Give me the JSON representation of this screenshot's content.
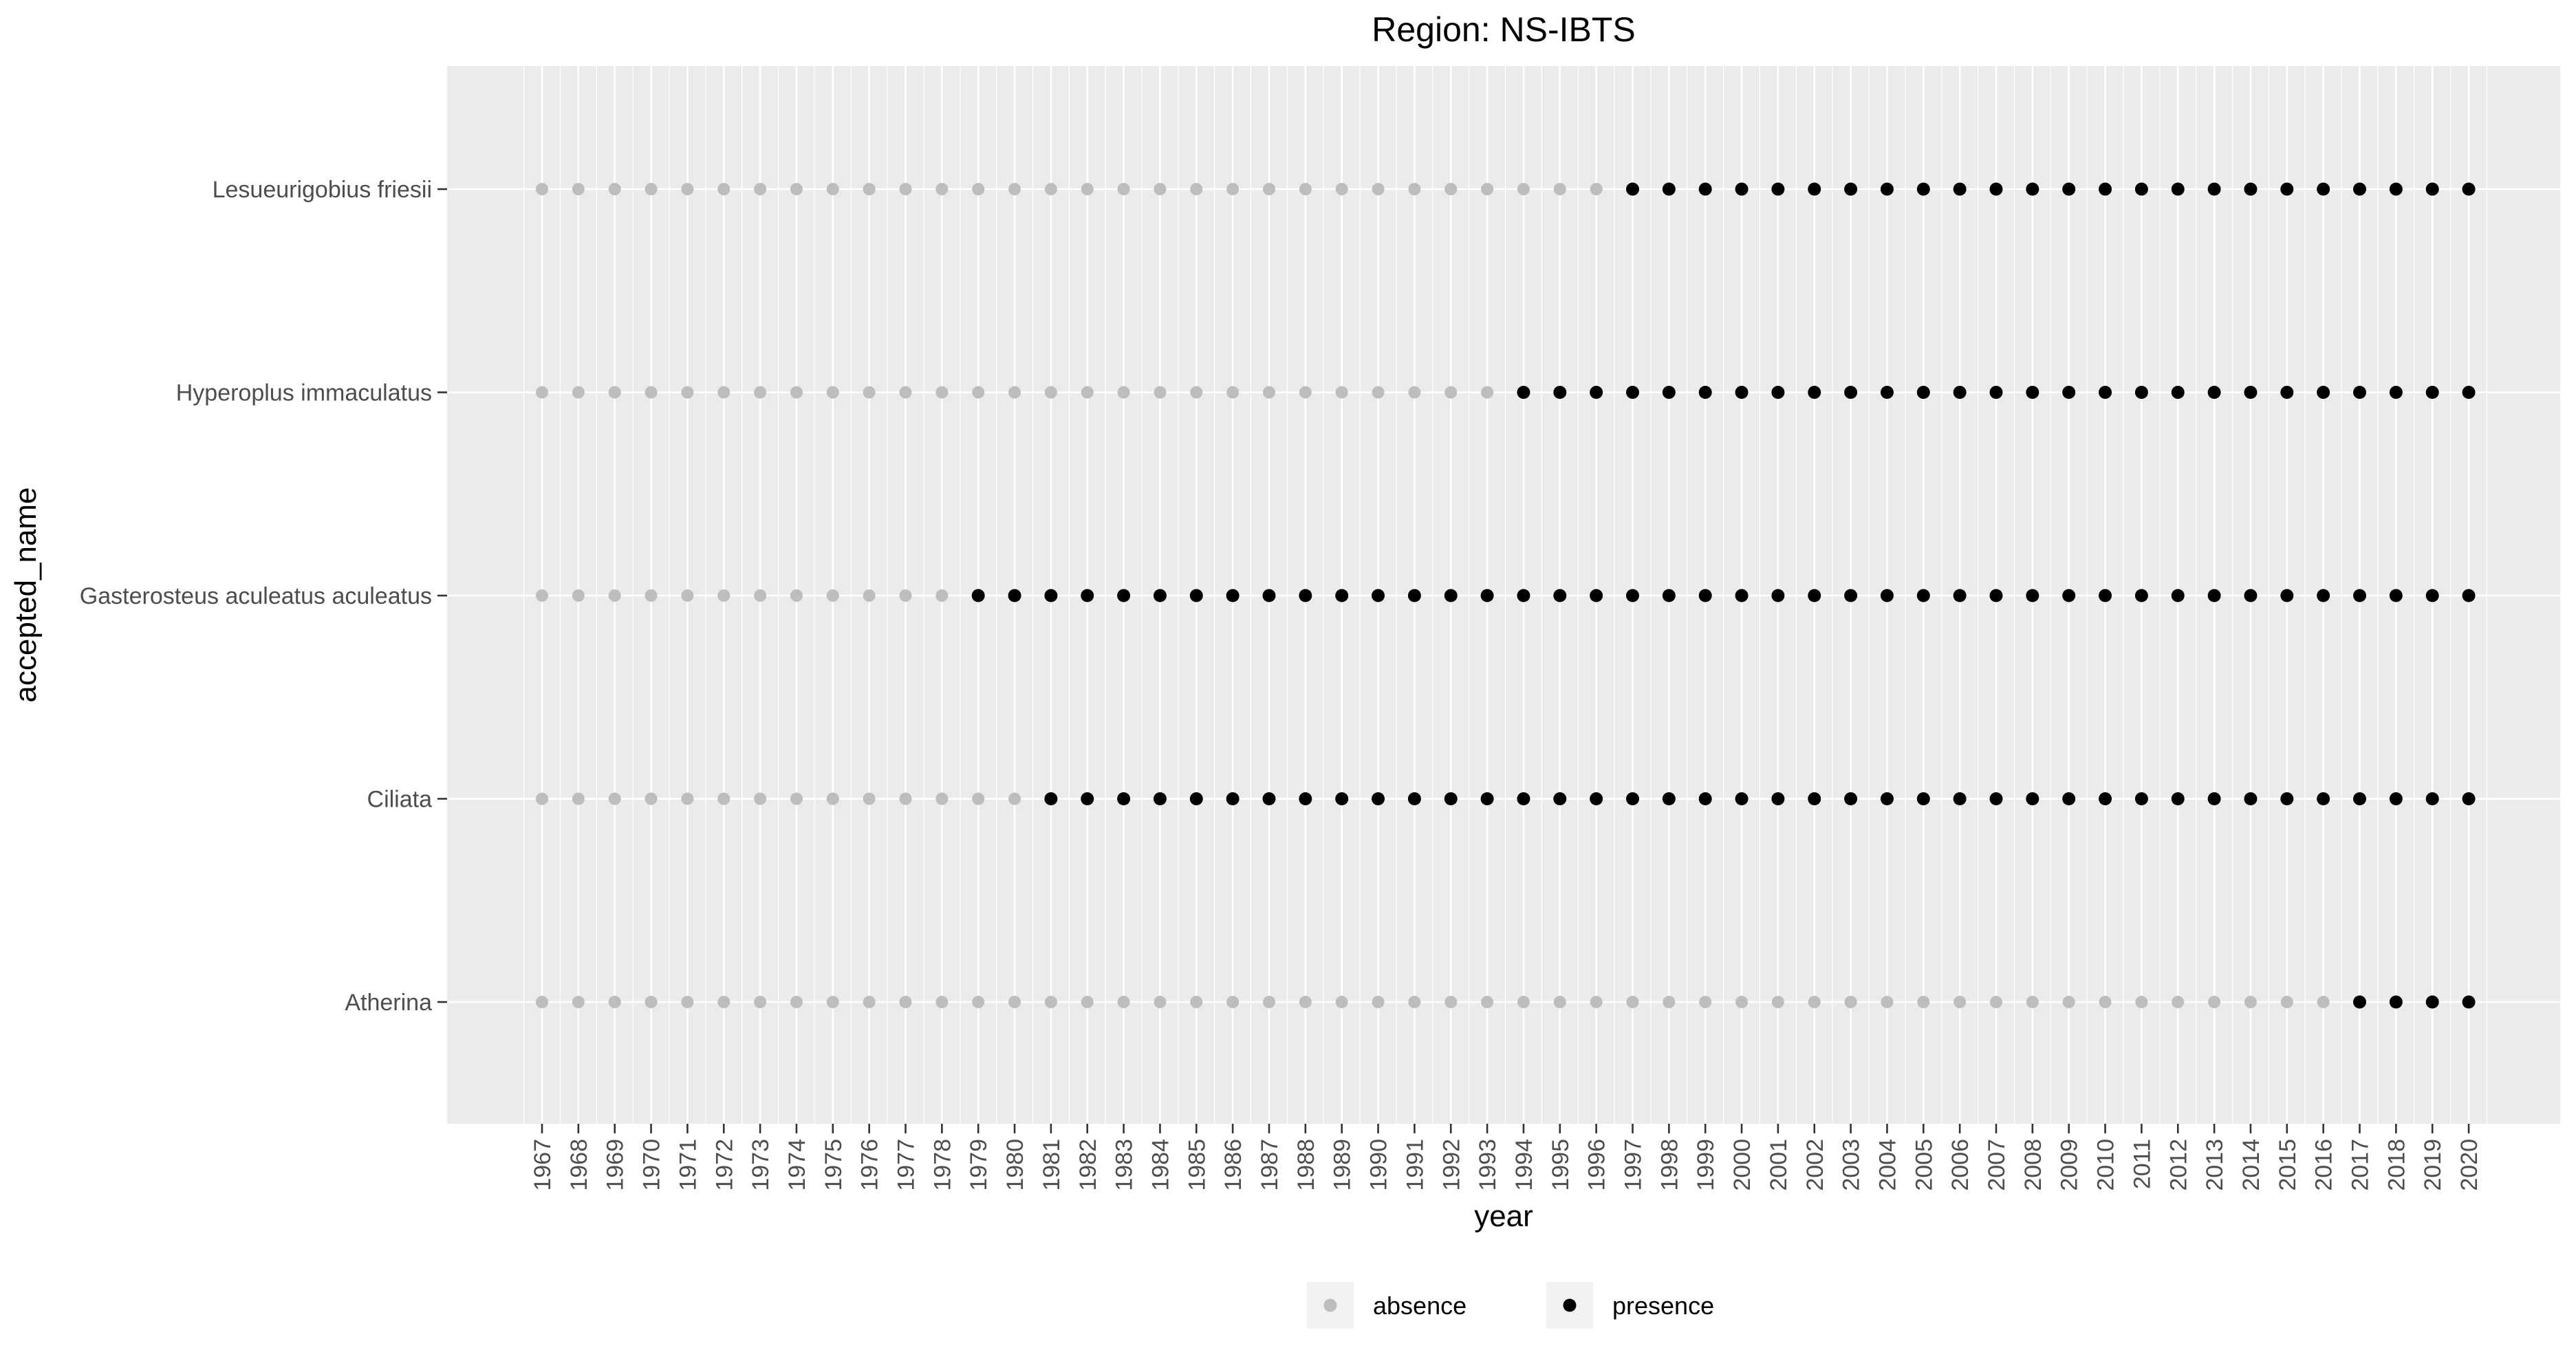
{
  "chart_data": {
    "type": "scatter",
    "title": "Region: NS-IBTS",
    "xlabel": "year",
    "ylabel": "accepted_name",
    "x_categories": [
      "1967",
      "1968",
      "1969",
      "1970",
      "1971",
      "1972",
      "1973",
      "1974",
      "1975",
      "1976",
      "1977",
      "1978",
      "1979",
      "1980",
      "1981",
      "1982",
      "1983",
      "1984",
      "1985",
      "1986",
      "1987",
      "1988",
      "1989",
      "1990",
      "1991",
      "1992",
      "1993",
      "1994",
      "1995",
      "1996",
      "1997",
      "1998",
      "1999",
      "2000",
      "2001",
      "2002",
      "2003",
      "2004",
      "2005",
      "2006",
      "2007",
      "2008",
      "2009",
      "2010",
      "2011",
      "2012",
      "2013",
      "2014",
      "2015",
      "2016",
      "2017",
      "2018",
      "2019",
      "2020"
    ],
    "y_categories": [
      "Atherina",
      "Ciliata",
      "Gasterosteus aculeatus aculeatus",
      "Hyperoplus immaculatus",
      "Lesueurigobius friesii"
    ],
    "series": [
      {
        "name": "absence",
        "color": "#bdbdbd",
        "points": [
          {
            "y": "Lesueurigobius friesii",
            "x": [
              "1967",
              "1968",
              "1969",
              "1970",
              "1971",
              "1972",
              "1973",
              "1974",
              "1975",
              "1976",
              "1977",
              "1978",
              "1979",
              "1980",
              "1981",
              "1982",
              "1983",
              "1984",
              "1985",
              "1986",
              "1987",
              "1988",
              "1989",
              "1990",
              "1991",
              "1992",
              "1993",
              "1994",
              "1995",
              "1996"
            ]
          },
          {
            "y": "Hyperoplus immaculatus",
            "x": [
              "1967",
              "1968",
              "1969",
              "1970",
              "1971",
              "1972",
              "1973",
              "1974",
              "1975",
              "1976",
              "1977",
              "1978",
              "1979",
              "1980",
              "1981",
              "1982",
              "1983",
              "1984",
              "1985",
              "1986",
              "1987",
              "1988",
              "1989",
              "1990",
              "1991",
              "1992",
              "1993"
            ]
          },
          {
            "y": "Gasterosteus aculeatus aculeatus",
            "x": [
              "1967",
              "1968",
              "1969",
              "1970",
              "1971",
              "1972",
              "1973",
              "1974",
              "1975",
              "1976",
              "1977",
              "1978"
            ]
          },
          {
            "y": "Ciliata",
            "x": [
              "1967",
              "1968",
              "1969",
              "1970",
              "1971",
              "1972",
              "1973",
              "1974",
              "1975",
              "1976",
              "1977",
              "1978",
              "1979",
              "1980"
            ]
          },
          {
            "y": "Atherina",
            "x": [
              "1967",
              "1968",
              "1969",
              "1970",
              "1971",
              "1972",
              "1973",
              "1974",
              "1975",
              "1976",
              "1977",
              "1978",
              "1979",
              "1980",
              "1981",
              "1982",
              "1983",
              "1984",
              "1985",
              "1986",
              "1987",
              "1988",
              "1989",
              "1990",
              "1991",
              "1992",
              "1993",
              "1994",
              "1995",
              "1996",
              "1997",
              "1998",
              "1999",
              "2000",
              "2001",
              "2002",
              "2003",
              "2004",
              "2005",
              "2006",
              "2007",
              "2008",
              "2009",
              "2010",
              "2011",
              "2012",
              "2013",
              "2014",
              "2015",
              "2016"
            ]
          }
        ]
      },
      {
        "name": "presence",
        "color": "#000000",
        "points": [
          {
            "y": "Lesueurigobius friesii",
            "x": [
              "1997",
              "1998",
              "1999",
              "2000",
              "2001",
              "2002",
              "2003",
              "2004",
              "2005",
              "2006",
              "2007",
              "2008",
              "2009",
              "2010",
              "2011",
              "2012",
              "2013",
              "2014",
              "2015",
              "2016",
              "2017",
              "2018",
              "2019",
              "2020"
            ]
          },
          {
            "y": "Hyperoplus immaculatus",
            "x": [
              "1994",
              "1995",
              "1996",
              "1997",
              "1998",
              "1999",
              "2000",
              "2001",
              "2002",
              "2003",
              "2004",
              "2005",
              "2006",
              "2007",
              "2008",
              "2009",
              "2010",
              "2011",
              "2012",
              "2013",
              "2014",
              "2015",
              "2016",
              "2017",
              "2018",
              "2019",
              "2020"
            ]
          },
          {
            "y": "Gasterosteus aculeatus aculeatus",
            "x": [
              "1979",
              "1980",
              "1981",
              "1982",
              "1983",
              "1984",
              "1985",
              "1986",
              "1987",
              "1988",
              "1989",
              "1990",
              "1991",
              "1992",
              "1993",
              "1994",
              "1995",
              "1996",
              "1997",
              "1998",
              "1999",
              "2000",
              "2001",
              "2002",
              "2003",
              "2004",
              "2005",
              "2006",
              "2007",
              "2008",
              "2009",
              "2010",
              "2011",
              "2012",
              "2013",
              "2014",
              "2015",
              "2016",
              "2017",
              "2018",
              "2019",
              "2020"
            ]
          },
          {
            "y": "Ciliata",
            "x": [
              "1981",
              "1982",
              "1983",
              "1984",
              "1985",
              "1986",
              "1987",
              "1988",
              "1989",
              "1990",
              "1991",
              "1992",
              "1993",
              "1994",
              "1995",
              "1996",
              "1997",
              "1998",
              "1999",
              "2000",
              "2001",
              "2002",
              "2003",
              "2004",
              "2005",
              "2006",
              "2007",
              "2008",
              "2009",
              "2010",
              "2011",
              "2012",
              "2013",
              "2014",
              "2015",
              "2016",
              "2017",
              "2018",
              "2019",
              "2020"
            ]
          },
          {
            "y": "Atherina",
            "x": [
              "2017",
              "2018",
              "2019",
              "2020"
            ]
          }
        ]
      }
    ],
    "grid": true,
    "legend_position": "bottom",
    "legend_colors": {
      "panel": "#ebebeb",
      "gridline": "#ffffff"
    }
  }
}
